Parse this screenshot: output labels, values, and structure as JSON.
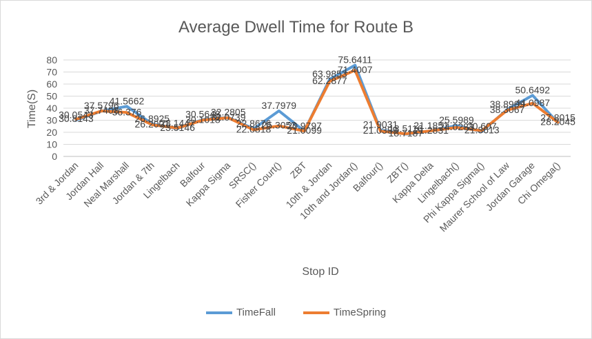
{
  "chart_data": {
    "type": "line",
    "title": "Average Dwell Time for Route B",
    "xlabel": "Stop ID",
    "ylabel": "Time(S)",
    "ylim": [
      0,
      80
    ],
    "yticks": [
      0,
      10,
      20,
      30,
      40,
      50,
      60,
      70,
      80
    ],
    "grid": true,
    "legend_position": "bottom",
    "categories": [
      "3rd & Jordan",
      "Jordan Hall",
      "Neal Marshall",
      "Jordan & 7th",
      "Lingelbach",
      "Balfour",
      "Kappa Sigma",
      "SRSC()",
      "Fisher Court()",
      "ZBT",
      "10th & Jordan",
      "10th and Jordan()",
      "Balfour()",
      "ZBT()",
      "Kappa Delta",
      "Lingelbach()",
      "Phi Kappa Sigma()",
      "Maurer School of Law",
      "Jordan Garage",
      "Chi Omega()"
    ],
    "series": [
      {
        "name": "TimeFall",
        "color": "#5b9bd5",
        "values": [
          30.0543,
          37.5796,
          41.5662,
          26.8925,
          23.1447,
          30.5648,
          32.2805,
          22.8676,
          37.7979,
          20.9797,
          63.9853,
          75.6411,
          21.9031,
          18.5116,
          21.1851,
          25.5989,
          20.607,
          38.8909,
          50.6492,
          27.8015
        ],
        "labels": [
          "30.0543",
          "37.5796",
          "41.5662",
          "26.8925",
          "23.1447",
          "30.5648",
          "32.2805",
          "22.8676",
          "37.7979",
          "20.9797",
          "63.9853",
          "75.6411",
          "21.9031",
          "18.5116",
          "21.1851",
          "25.5989",
          "20.607",
          "38.8909",
          "50.6492",
          "27.8015"
        ]
      },
      {
        "name": "TimeSpring",
        "color": "#ed7d31",
        "values": [
          30.8143,
          37.7408,
          36.376,
          26.2001,
          23.5146,
          30.1018,
          32.0739,
          22.0818,
          25.3053,
          21.0099,
          62.2877,
          71.4007,
          21.0389,
          18.7187,
          21.2831,
          24.0283,
          21.3613,
          38.3067,
          44.0987,
          28.2045
        ],
        "labels": [
          "30.8143",
          "37.7408",
          "36.376",
          "26.2001",
          "23.5146",
          "30.1018",
          "32.0739",
          "22.0818",
          "25.3053",
          "21.0099",
          "62.2877",
          "71.4007",
          "21.0389",
          "18.7187",
          "21.2831",
          "24.0283",
          "21.3613",
          "38.3067",
          "44.0987",
          "28.2045"
        ]
      }
    ]
  }
}
